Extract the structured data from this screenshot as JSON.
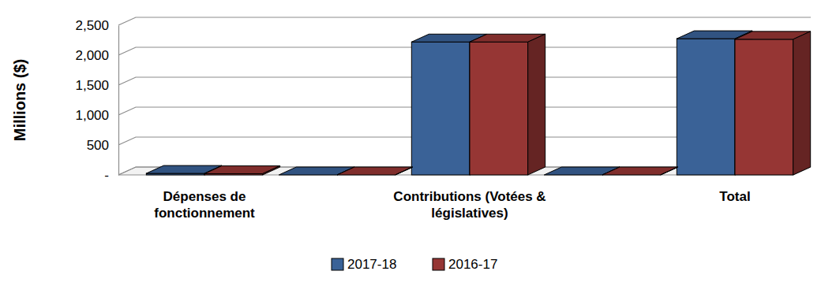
{
  "chart_data": {
    "type": "bar",
    "y_label": "Millions ($)",
    "categories": [
      "Dépenses de fonctionnement",
      null,
      "Contributions (Votées & législatives)",
      null,
      "Total"
    ],
    "series": [
      {
        "name": "2017-18",
        "color": "#3a6297",
        "values": [
          25,
          0,
          2220,
          0,
          2275
        ]
      },
      {
        "name": "2016-17",
        "color": "#963634",
        "values": [
          20,
          0,
          2220,
          0,
          2265
        ]
      }
    ],
    "ylim": [
      0,
      2500
    ],
    "yticks": [
      {
        "value": 0,
        "label": "-"
      },
      500,
      {
        "value": 1000,
        "label": "1,000"
      },
      {
        "value": 1500,
        "label": "1,500"
      },
      {
        "value": 2000,
        "label": "2,000"
      },
      {
        "value": 2500,
        "label": "2,500"
      }
    ],
    "grid": true,
    "legend": "bottom"
  }
}
